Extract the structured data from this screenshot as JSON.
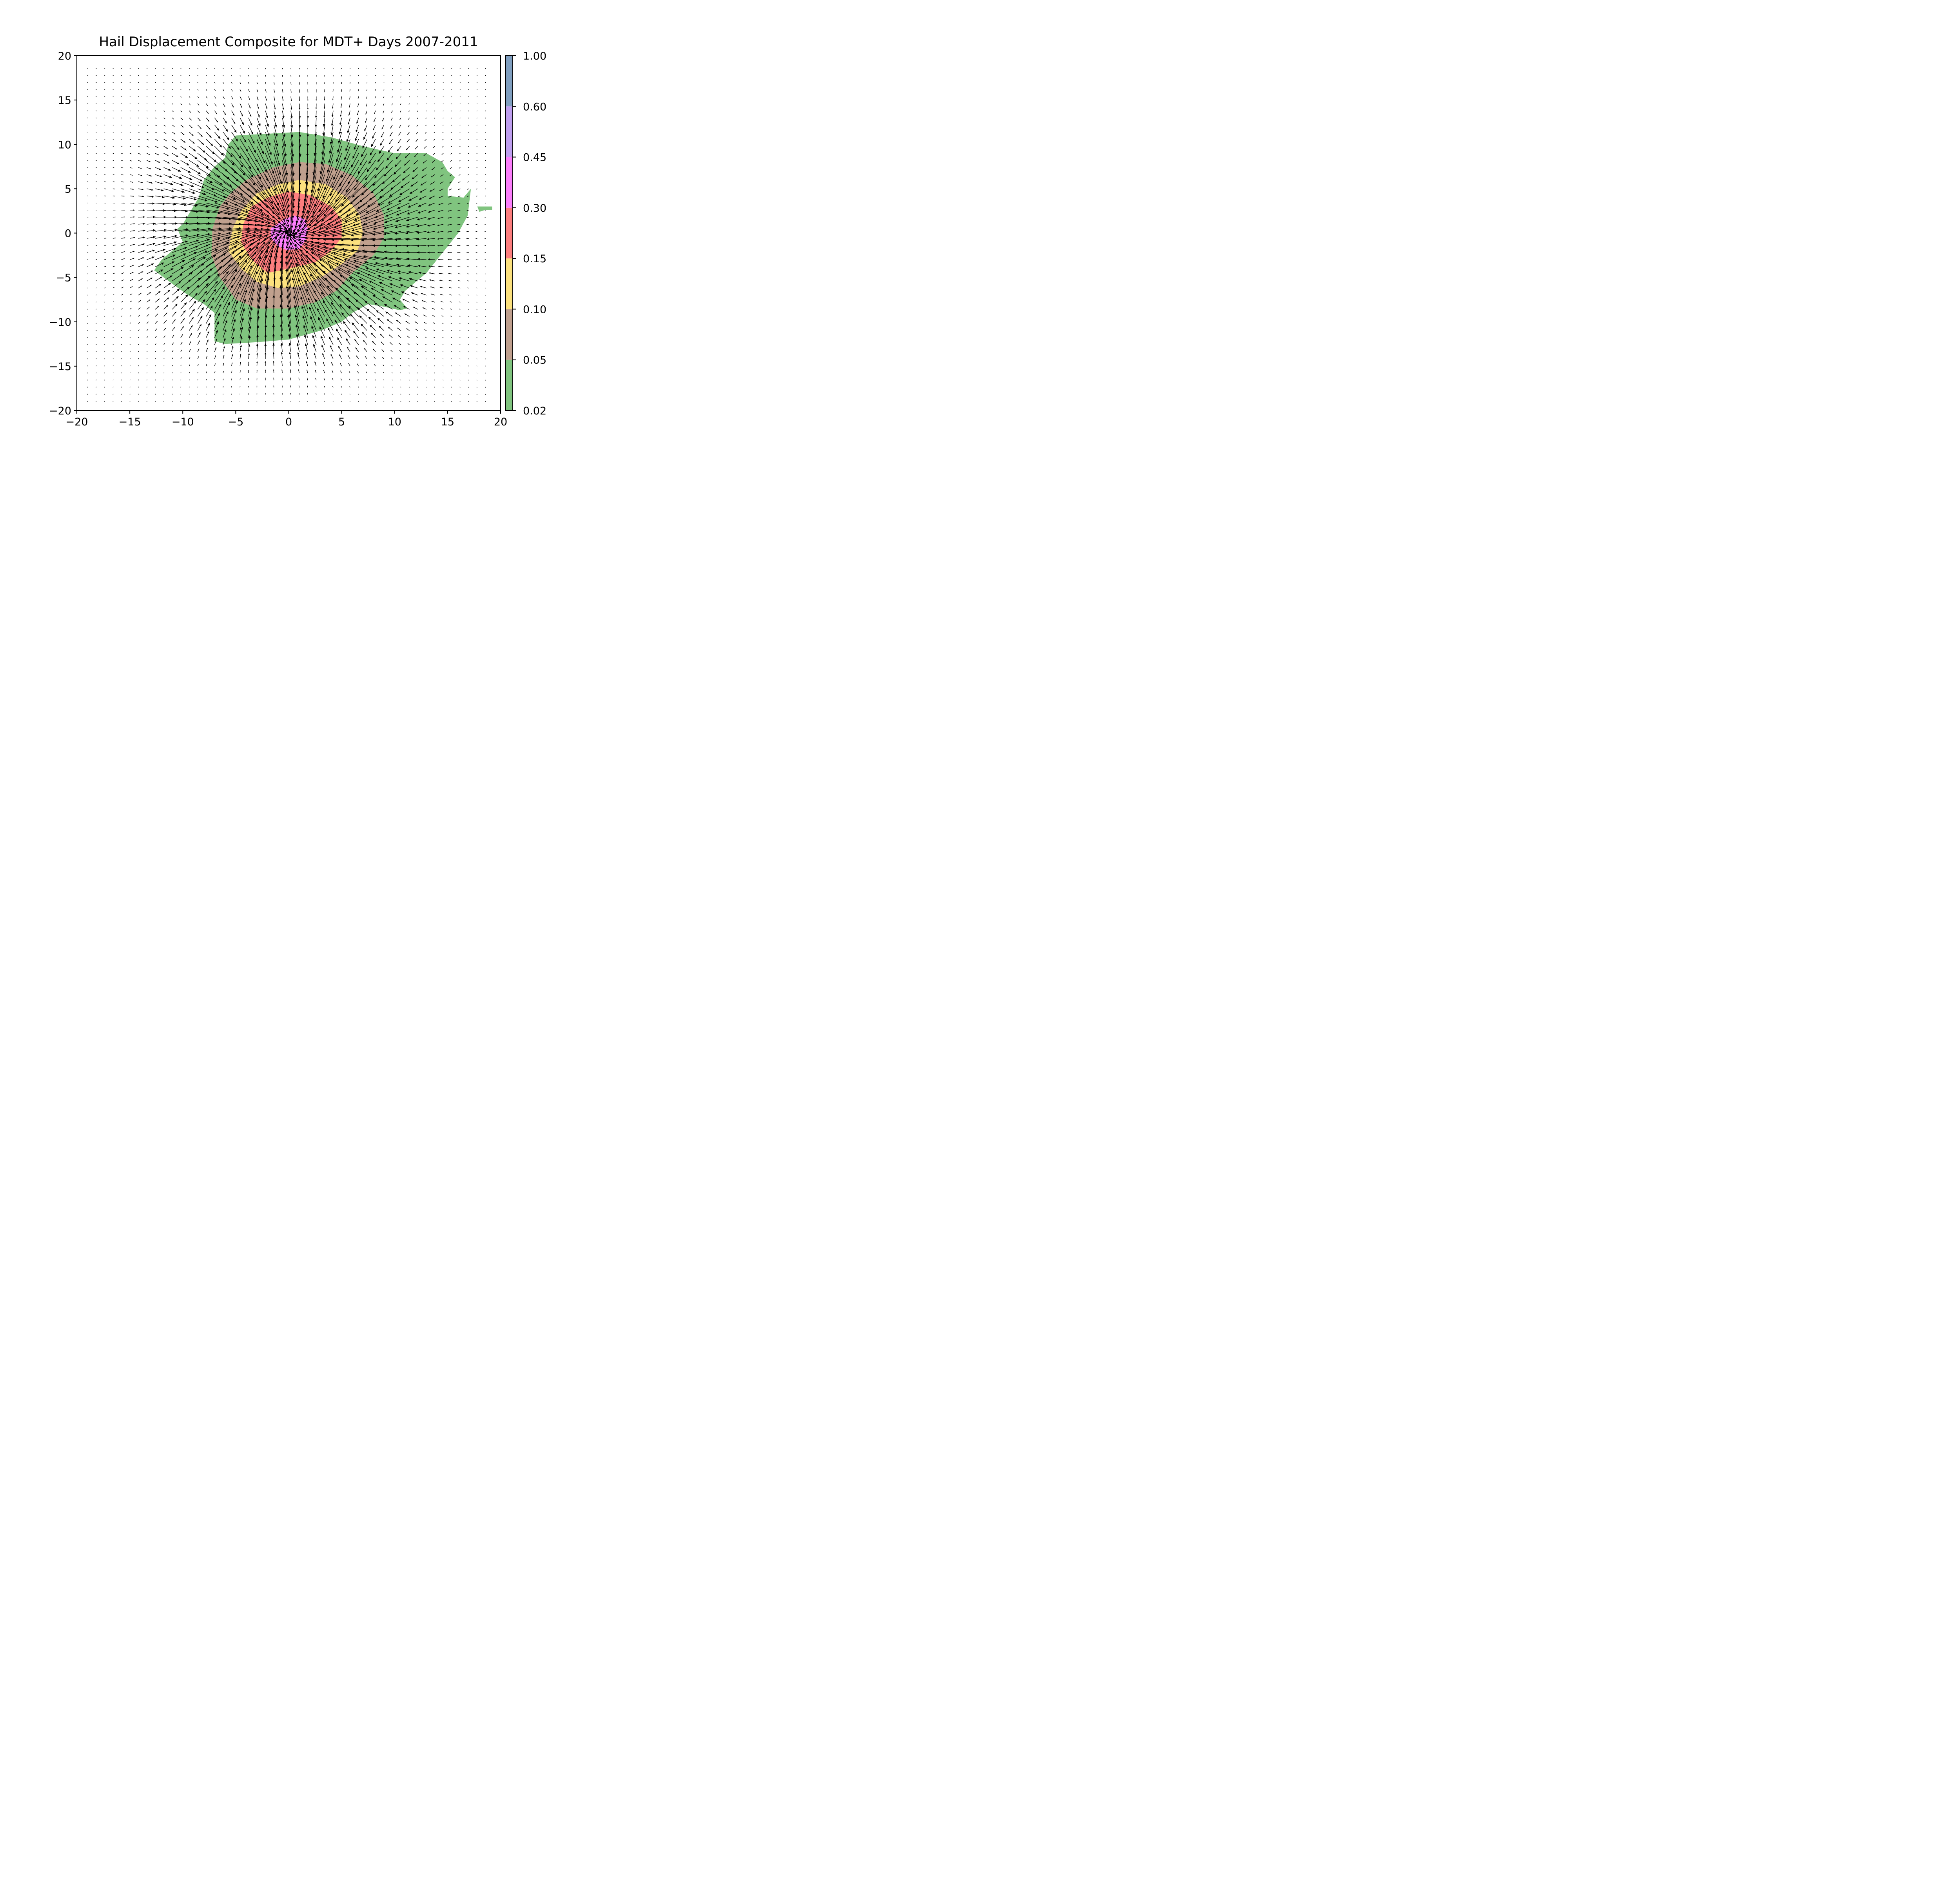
{
  "chart_data": {
    "type": "contour",
    "title": "Hail Displacement Composite for MDT+ Days 2007-2011",
    "xlabel": "",
    "ylabel": "",
    "xlim": [
      -20,
      20
    ],
    "ylim": [
      -20,
      20
    ],
    "x_ticks": [
      -20,
      -15,
      -10,
      -5,
      0,
      5,
      10,
      15,
      20
    ],
    "y_ticks": [
      -20,
      -15,
      -10,
      -5,
      0,
      5,
      10,
      15,
      20
    ],
    "grid": false,
    "colorbar": {
      "levels": [
        0.02,
        0.05,
        0.1,
        0.15,
        0.3,
        0.45,
        0.6,
        1.0
      ],
      "tick_labels": [
        "0.02",
        "0.05",
        "0.10",
        "0.15",
        "0.30",
        "0.45",
        "0.60",
        "1.00"
      ],
      "colors": [
        "#80c47f",
        "#c0a08e",
        "#fce17e",
        "#fd7e7e",
        "#fc7efc",
        "#bf9ff0",
        "#809fc0"
      ]
    },
    "contours": [
      {
        "level": 0.02,
        "color": "#80c47f",
        "polygon": [
          [
            -5,
            11
          ],
          [
            -2,
            11.2
          ],
          [
            1,
            11.4
          ],
          [
            4,
            10.8
          ],
          [
            7,
            9.8
          ],
          [
            10,
            9
          ],
          [
            13,
            9
          ],
          [
            14.5,
            8
          ],
          [
            15,
            7
          ],
          [
            15.7,
            6.3
          ],
          [
            15,
            5
          ],
          [
            15,
            4.2
          ],
          [
            16.5,
            4
          ],
          [
            17.2,
            5
          ],
          [
            17,
            3
          ],
          [
            16.9,
            2
          ],
          [
            16,
            0
          ],
          [
            15,
            -1.5
          ],
          [
            14,
            -3
          ],
          [
            13,
            -4.5
          ],
          [
            12,
            -5.5
          ],
          [
            11,
            -6.5
          ],
          [
            10.5,
            -7.5
          ],
          [
            11.2,
            -8.5
          ],
          [
            10.5,
            -8.7
          ],
          [
            9,
            -8.3
          ],
          [
            7.5,
            -8
          ],
          [
            6,
            -9
          ],
          [
            5,
            -10
          ],
          [
            3,
            -11
          ],
          [
            0,
            -12
          ],
          [
            -3,
            -12.3
          ],
          [
            -6,
            -12.5
          ],
          [
            -7,
            -12.2
          ],
          [
            -7,
            -11
          ],
          [
            -7,
            -9
          ],
          [
            -8,
            -8
          ],
          [
            -9.5,
            -7
          ],
          [
            -11,
            -5.7
          ],
          [
            -12.7,
            -4.2
          ],
          [
            -12,
            -3
          ],
          [
            -11,
            -2
          ],
          [
            -10,
            -1
          ],
          [
            -10.5,
            0.5
          ],
          [
            -10,
            1
          ],
          [
            -9.5,
            2
          ],
          [
            -9,
            3
          ],
          [
            -8.5,
            4
          ],
          [
            -8,
            6
          ],
          [
            -7,
            7.5
          ],
          [
            -6,
            8.5
          ],
          [
            -5.7,
            10
          ]
        ],
        "extra_polygon": [
          [
            17.8,
            3
          ],
          [
            19.2,
            3
          ],
          [
            19.2,
            2.6
          ],
          [
            18.5,
            2.6
          ],
          [
            18,
            2.4
          ]
        ]
      },
      {
        "level": 0.05,
        "color": "#c0a08e",
        "polygon": [
          [
            -4,
            6
          ],
          [
            -1.5,
            7.4
          ],
          [
            1,
            8
          ],
          [
            3.5,
            7.8
          ],
          [
            6,
            6.5
          ],
          [
            8,
            4.5
          ],
          [
            9,
            2
          ],
          [
            9,
            -0.5
          ],
          [
            8,
            -2.5
          ],
          [
            6,
            -4.5
          ],
          [
            4.5,
            -6.5
          ],
          [
            2.5,
            -7.8
          ],
          [
            0,
            -8.5
          ],
          [
            -3,
            -8.5
          ],
          [
            -5,
            -7.5
          ],
          [
            -6.5,
            -5
          ],
          [
            -7.3,
            -2.5
          ],
          [
            -7.2,
            0.5
          ],
          [
            -6.5,
            3
          ],
          [
            -5.5,
            4.5
          ]
        ]
      },
      {
        "level": 0.1,
        "color": "#fce17e",
        "polygon": [
          [
            -3,
            4.5
          ],
          [
            -1,
            5.5
          ],
          [
            1,
            6
          ],
          [
            3.5,
            5.5
          ],
          [
            5.5,
            4
          ],
          [
            6.7,
            2
          ],
          [
            7,
            0
          ],
          [
            6.5,
            -2
          ],
          [
            5,
            -3.5
          ],
          [
            3,
            -5
          ],
          [
            1,
            -6
          ],
          [
            -1,
            -6.2
          ],
          [
            -3,
            -5.5
          ],
          [
            -4.5,
            -4
          ],
          [
            -5.7,
            -2
          ],
          [
            -5.3,
            0.5
          ],
          [
            -4.5,
            2.5
          ]
        ]
      },
      {
        "level": 0.15,
        "color": "#fd7e7e",
        "polygon": [
          [
            -2,
            4
          ],
          [
            0,
            4.7
          ],
          [
            2,
            4.3
          ],
          [
            4,
            3
          ],
          [
            5,
            1.5
          ],
          [
            5,
            -0.5
          ],
          [
            4,
            -2
          ],
          [
            2.5,
            -3.3
          ],
          [
            0,
            -4
          ],
          [
            -2,
            -4.5
          ],
          [
            -3.5,
            -3
          ],
          [
            -4.5,
            -1
          ],
          [
            -4.3,
            1
          ],
          [
            -3.5,
            3
          ]
        ]
      },
      {
        "level": 0.3,
        "color": "#fc7efc",
        "polygon": [
          [
            -0.5,
            1.5
          ],
          [
            0.5,
            2
          ],
          [
            1.5,
            1.6
          ],
          [
            1.8,
            0.5
          ],
          [
            1.6,
            -0.8
          ],
          [
            1,
            -1.8
          ],
          [
            -0.2,
            -1.9
          ],
          [
            -1,
            -1.5
          ],
          [
            -1.7,
            -0.5
          ],
          [
            -1.7,
            0.5
          ]
        ]
      }
    ],
    "vector_field": {
      "grid_x": [
        -19,
        19,
        0.8
      ],
      "grid_y": [
        -19,
        19,
        0.8
      ],
      "sink_center": [
        0,
        0
      ],
      "description": "arrows converge toward origin, strongest magnitude around radius 5-10"
    }
  }
}
